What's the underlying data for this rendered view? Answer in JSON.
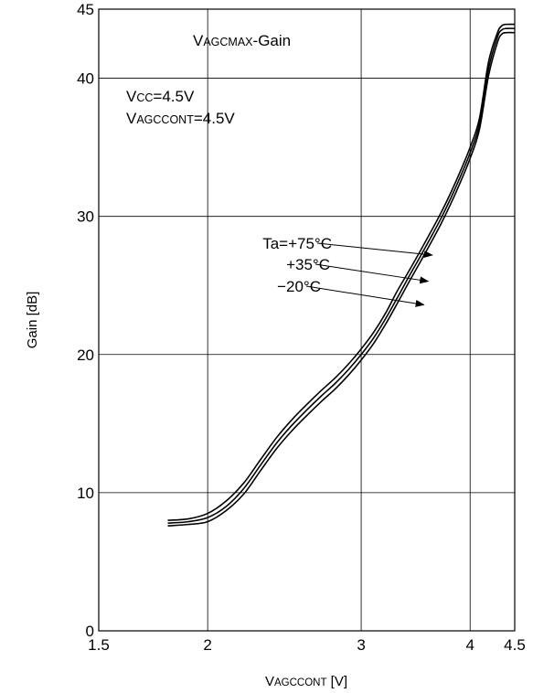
{
  "chart_data": {
    "type": "line",
    "title_main": "V",
    "title_sub": "AGCMAX",
    "title_rest": "-Gain",
    "cond1_main": "V",
    "cond1_sub": "CC",
    "cond1_rest": "=4.5V",
    "cond2_main": "V",
    "cond2_sub": "AGCCONT",
    "cond2_rest": "=4.5V",
    "xlabel_main": "V",
    "xlabel_sub": "AGCCONT",
    "xlabel_rest": " [V]",
    "ylabel": "Gain [dB]",
    "x_scale": "log",
    "xlim": [
      1.5,
      4.5
    ],
    "ylim": [
      0,
      45
    ],
    "x_ticks": [
      1.5,
      2,
      3,
      4,
      4.5
    ],
    "x_tick_labels": [
      "1.5",
      "2",
      "3",
      "4",
      "4.5"
    ],
    "x_grid": [
      2,
      3,
      4
    ],
    "y_ticks": [
      0,
      10,
      20,
      30,
      40,
      45
    ],
    "y_tick_labels": [
      "0",
      "10",
      "20",
      "30",
      "40",
      "45"
    ],
    "y_grid": [
      10,
      20,
      30,
      40
    ],
    "series": [
      {
        "name": "Ta=+75°C",
        "x": [
          1.8,
          1.9,
          2.0,
          2.1,
          2.2,
          2.3,
          2.4,
          2.5,
          2.6,
          2.7,
          2.8,
          2.9,
          3.0,
          3.1,
          3.2,
          3.3,
          3.4,
          3.5,
          3.6,
          3.7,
          3.8,
          3.9,
          4.0,
          4.1,
          4.2,
          4.3,
          4.35,
          4.4,
          4.5
        ],
        "y": [
          8.0,
          8.1,
          8.5,
          9.4,
          10.7,
          12.4,
          14.0,
          15.3,
          16.4,
          17.4,
          18.3,
          19.3,
          20.4,
          21.6,
          23.0,
          24.6,
          26.0,
          27.4,
          28.8,
          30.2,
          31.7,
          33.3,
          35.0,
          37.1,
          41.2,
          43.3,
          43.8,
          43.9,
          43.9
        ]
      },
      {
        "name": "+35°C",
        "x": [
          1.8,
          1.9,
          2.0,
          2.1,
          2.2,
          2.3,
          2.4,
          2.5,
          2.6,
          2.7,
          2.8,
          2.9,
          3.0,
          3.1,
          3.2,
          3.3,
          3.4,
          3.5,
          3.6,
          3.7,
          3.8,
          3.9,
          4.0,
          4.1,
          4.2,
          4.3,
          4.35,
          4.4,
          4.5
        ],
        "y": [
          7.8,
          7.9,
          8.2,
          9.0,
          10.3,
          12.0,
          13.6,
          14.9,
          16.0,
          17.0,
          17.9,
          18.9,
          20.0,
          21.2,
          22.6,
          24.1,
          25.6,
          27.0,
          28.4,
          29.8,
          31.3,
          32.9,
          34.6,
          36.7,
          40.7,
          43.0,
          43.5,
          43.6,
          43.6
        ]
      },
      {
        "name": "−20°C",
        "x": [
          1.8,
          1.9,
          2.0,
          2.1,
          2.2,
          2.3,
          2.4,
          2.5,
          2.6,
          2.7,
          2.8,
          2.9,
          3.0,
          3.1,
          3.2,
          3.3,
          3.4,
          3.5,
          3.6,
          3.7,
          3.8,
          3.9,
          4.0,
          4.1,
          4.2,
          4.3,
          4.35,
          4.4,
          4.5
        ],
        "y": [
          7.6,
          7.7,
          7.9,
          8.7,
          9.9,
          11.6,
          13.2,
          14.5,
          15.6,
          16.6,
          17.5,
          18.5,
          19.6,
          20.8,
          22.2,
          23.7,
          25.2,
          26.6,
          28.0,
          29.4,
          30.9,
          32.5,
          34.2,
          36.3,
          40.2,
          42.6,
          43.2,
          43.3,
          43.3
        ]
      }
    ],
    "annotations": [
      {
        "text": "Ta=+75°C",
        "target_x": 3.62,
        "target_y": 27.2
      },
      {
        "text": "+35°C",
        "target_x": 3.58,
        "target_y": 25.3
      },
      {
        "text": "−20°C",
        "target_x": 3.54,
        "target_y": 23.6
      }
    ],
    "grid": true,
    "line_color": "#000000"
  }
}
